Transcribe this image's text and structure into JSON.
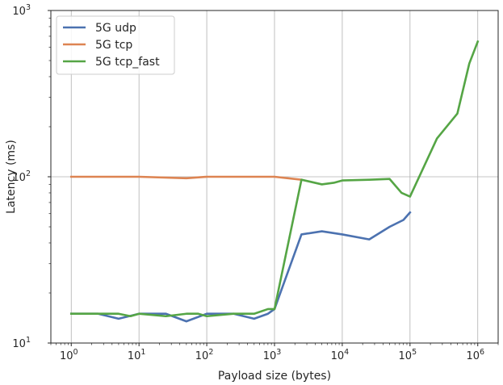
{
  "chart_data": {
    "type": "line",
    "xlabel": "Payload size (bytes)",
    "ylabel": "Latency (ms)",
    "xscale": "log",
    "yscale": "log",
    "xlim": [
      0.5,
      2000000
    ],
    "ylim": [
      10,
      1000
    ],
    "grid": true,
    "legend_position": "top-left",
    "x_ticks": [
      {
        "value": 1,
        "base": "10",
        "exp": "0"
      },
      {
        "value": 10,
        "base": "10",
        "exp": "1"
      },
      {
        "value": 100,
        "base": "10",
        "exp": "2"
      },
      {
        "value": 1000,
        "base": "10",
        "exp": "3"
      },
      {
        "value": 10000,
        "base": "10",
        "exp": "4"
      },
      {
        "value": 100000,
        "base": "10",
        "exp": "5"
      },
      {
        "value": 1000000,
        "base": "10",
        "exp": "6"
      }
    ],
    "y_ticks": [
      {
        "value": 10,
        "base": "10",
        "exp": "1"
      },
      {
        "value": 100,
        "base": "10",
        "exp": "2"
      },
      {
        "value": 1000,
        "base": "10",
        "exp": "3"
      }
    ],
    "series": [
      {
        "name": "5G udp",
        "color": "#4c72b0",
        "points": [
          [
            1,
            15
          ],
          [
            2.5,
            15
          ],
          [
            5,
            14
          ],
          [
            10,
            15
          ],
          [
            25,
            15
          ],
          [
            50,
            13.5
          ],
          [
            100,
            15
          ],
          [
            250,
            15
          ],
          [
            500,
            14
          ],
          [
            800,
            15
          ],
          [
            1000,
            16
          ],
          [
            2500,
            45
          ],
          [
            5000,
            47
          ],
          [
            10000,
            45
          ],
          [
            25000,
            42
          ],
          [
            50000,
            50
          ],
          [
            80000,
            55
          ],
          [
            100000,
            61
          ]
        ]
      },
      {
        "name": "5G tcp",
        "color": "#dd8452",
        "points": [
          [
            1,
            100
          ],
          [
            10,
            100
          ],
          [
            50,
            98
          ],
          [
            100,
            100
          ],
          [
            1000,
            100
          ],
          [
            2500,
            96
          ]
        ]
      },
      {
        "name": "5G tcp_fast",
        "color": "#55a545",
        "points": [
          [
            1,
            15
          ],
          [
            2.5,
            15
          ],
          [
            5,
            15
          ],
          [
            7.5,
            14.5
          ],
          [
            10,
            15
          ],
          [
            25,
            14.5
          ],
          [
            50,
            15
          ],
          [
            75,
            15
          ],
          [
            100,
            14.5
          ],
          [
            250,
            15
          ],
          [
            500,
            15
          ],
          [
            800,
            16
          ],
          [
            1000,
            16
          ],
          [
            2500,
            96
          ],
          [
            5000,
            90
          ],
          [
            7500,
            92
          ],
          [
            10000,
            95
          ],
          [
            25000,
            96
          ],
          [
            50000,
            97
          ],
          [
            75000,
            80
          ],
          [
            100000,
            76
          ],
          [
            250000,
            170
          ],
          [
            500000,
            240
          ],
          [
            750000,
            480
          ],
          [
            1000000,
            650
          ]
        ]
      }
    ]
  }
}
